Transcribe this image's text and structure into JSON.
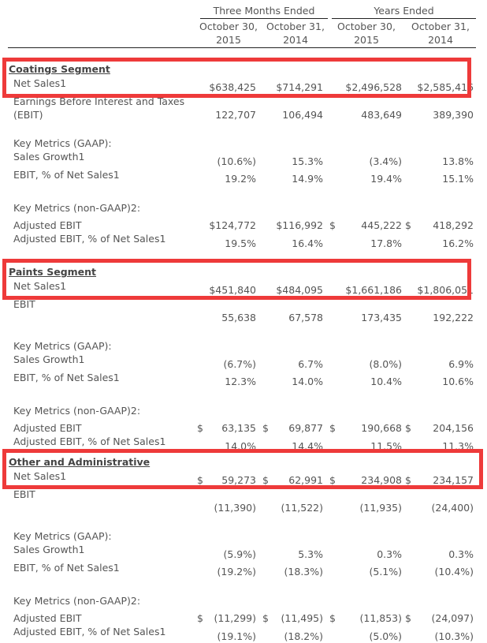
{
  "header": {
    "groups": [
      "Three Months Ended",
      "Years Ended"
    ],
    "columns": [
      {
        "line1": "October 30,",
        "line2": "2015"
      },
      {
        "line1": "October 31,",
        "line2": "2014"
      },
      {
        "line1": "October 30,",
        "line2": "2015"
      },
      {
        "line1": "October 31,",
        "line2": "2014"
      }
    ]
  },
  "sections": [
    {
      "title": "Coatings Segment",
      "rows": [
        {
          "label": "Net Sales1",
          "values": [
            "$638,425",
            "$714,291",
            "$2,496,528",
            "$2,585,416"
          ]
        },
        {
          "label": "Earnings Before Interest and Taxes",
          "label2": "(EBIT)",
          "values": [
            "122,707",
            "106,494",
            "483,649",
            "389,390"
          ]
        },
        {
          "label": "Key Metrics (GAAP):"
        },
        {
          "label": "Sales Growth1",
          "values": [
            "(10.6%)",
            "15.3%",
            "(3.4%)",
            "13.8%"
          ]
        },
        {
          "label": "EBIT, % of Net Sales1",
          "values": [
            "19.2%",
            "14.9%",
            "19.4%",
            "15.1%"
          ]
        },
        {
          "label": "Key Metrics (non-GAAP)2:"
        },
        {
          "label": "Adjusted EBIT",
          "values": [
            "$124,772",
            "$116,992",
            "$ 445,222",
            "$ 418,292"
          ]
        },
        {
          "label": "Adjusted EBIT, % of Net Sales1",
          "values": [
            "19.5%",
            "16.4%",
            "17.8%",
            "16.2%"
          ]
        }
      ]
    },
    {
      "title": "Paints Segment",
      "rows": [
        {
          "label": "Net Sales1",
          "values": [
            "$451,840",
            "$484,095",
            "$1,661,186",
            "$1,806,051"
          ]
        },
        {
          "label": "EBIT",
          "values": [
            "55,638",
            "67,578",
            "173,435",
            "192,222"
          ]
        },
        {
          "label": "Key Metrics (GAAP):"
        },
        {
          "label": "Sales Growth1",
          "values": [
            "(6.7%)",
            "6.7%",
            "(8.0%)",
            "6.9%"
          ]
        },
        {
          "label": "EBIT, % of Net Sales1",
          "values": [
            "12.3%",
            "14.0%",
            "10.4%",
            "10.6%"
          ]
        },
        {
          "label": "Key Metrics (non-GAAP)2:"
        },
        {
          "label": "Adjusted EBIT",
          "values": [
            "$ 63,135",
            "$ 69,877",
            "$ 190,668",
            "$ 204,156"
          ]
        },
        {
          "label": "Adjusted EBIT, % of Net Sales1",
          "values": [
            "14.0%",
            "14.4%",
            "11.5%",
            "11.3%"
          ]
        }
      ]
    },
    {
      "title": "Other and Administrative",
      "rows": [
        {
          "label": "Net Sales1",
          "values": [
            "$ 59,273",
            "$ 62,991",
            "$ 234,908",
            "$ 234,157"
          ]
        },
        {
          "label": "EBIT",
          "values": [
            "(11,390)",
            "(11,522)",
            "(11,935)",
            "(24,400)"
          ]
        },
        {
          "label": "Key Metrics (GAAP):"
        },
        {
          "label": "Sales Growth1",
          "values": [
            "(5.9%)",
            "5.3%",
            "0.3%",
            "0.3%"
          ]
        },
        {
          "label": "EBIT, % of Net Sales1",
          "values": [
            "(19.2%)",
            "(18.3%)",
            "(5.1%)",
            "(10.4%)"
          ]
        },
        {
          "label": "Key Metrics (non-GAAP)2:"
        },
        {
          "label": "Adjusted EBIT",
          "values": [
            "$ (11,299)",
            "$ (11,495)",
            "$ (11,853)",
            "$ (24,097)"
          ]
        },
        {
          "label": "Adjusted EBIT, % of Net Sales1",
          "values": [
            "(19.1%)",
            "(18.2%)",
            "(5.0%)",
            "(10.3%)"
          ]
        }
      ]
    }
  ],
  "colors": {
    "highlight": "#ee3a3a",
    "text": "#555555"
  }
}
